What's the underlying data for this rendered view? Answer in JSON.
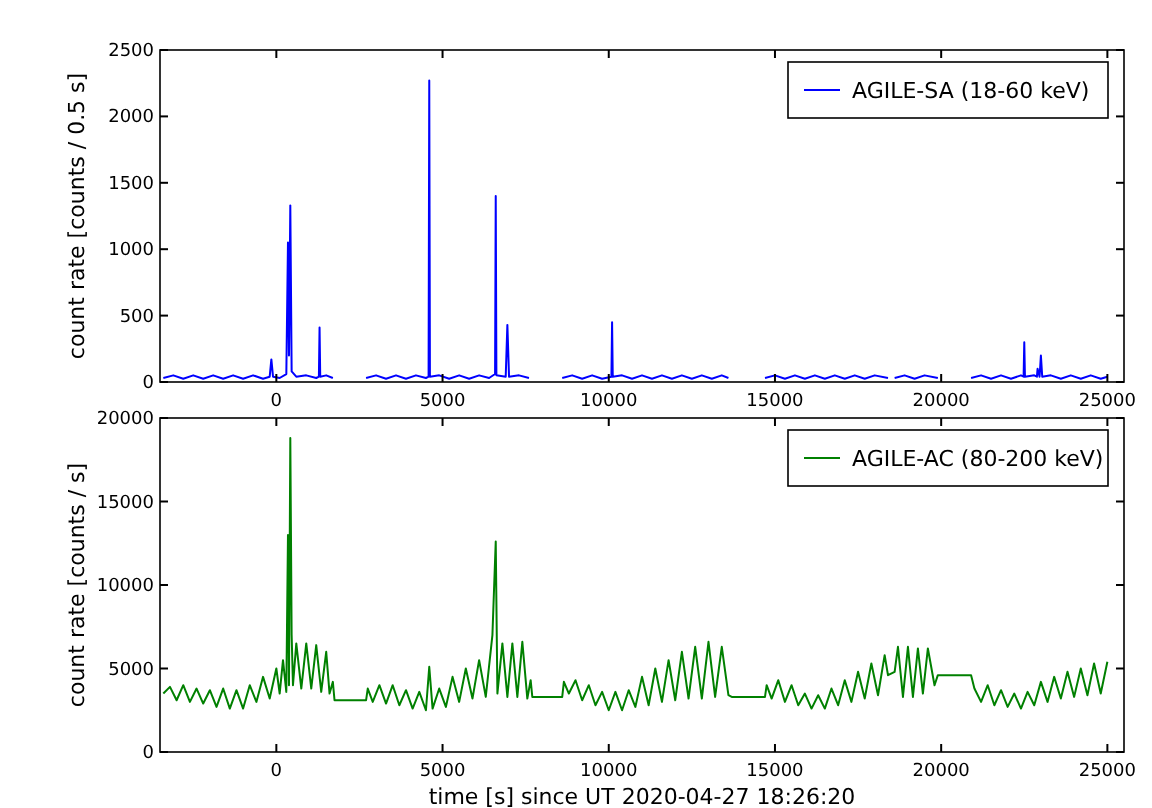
{
  "chart_data": [
    {
      "type": "line",
      "ylabel": "count rate [counts / 0.5 s]",
      "xlim": [
        -3500,
        25500
      ],
      "xticks": [
        0,
        5000,
        10000,
        15000,
        20000,
        25000
      ],
      "ylim": [
        0,
        2500
      ],
      "yticks": [
        0,
        500,
        1000,
        1500,
        2000,
        2500
      ],
      "grid": false,
      "legend": "top right",
      "series": [
        {
          "name": "AGILE-SA (18-60 keV)",
          "color": "#0000ff",
          "x": [
            -3400,
            -3100,
            -2800,
            -2500,
            -2200,
            -1900,
            -1600,
            -1300,
            -1000,
            -700,
            -400,
            -200,
            -150,
            -100,
            100,
            300,
            350,
            380,
            420,
            460,
            600,
            900,
            1200,
            1280,
            1300,
            1320,
            1500,
            1700,
            2200,
            2700,
            3000,
            3300,
            3600,
            3900,
            4200,
            4500,
            4580,
            4600,
            4620,
            4900,
            5200,
            5500,
            5800,
            6100,
            6400,
            6580,
            6600,
            6620,
            6900,
            6950,
            7000,
            7300,
            7600,
            8100,
            8600,
            8900,
            9200,
            9500,
            9800,
            10080,
            10100,
            10120,
            10400,
            10700,
            11000,
            11300,
            11600,
            11900,
            12200,
            12500,
            12800,
            13100,
            13400,
            13600,
            14100,
            14700,
            15000,
            15300,
            15600,
            15900,
            16200,
            16500,
            16800,
            17100,
            17400,
            17700,
            18000,
            18400,
            18500,
            18600,
            18900,
            19200,
            19500,
            19900,
            20400,
            20900,
            21200,
            21500,
            21800,
            22100,
            22400,
            22480,
            22500,
            22520,
            22800,
            22880,
            22900,
            22960,
            23000,
            23040,
            23300,
            23600,
            23900,
            24200,
            24500,
            24800,
            25000
          ],
          "values": [
            30,
            50,
            25,
            50,
            25,
            50,
            25,
            50,
            25,
            50,
            25,
            40,
            170,
            40,
            30,
            60,
            1050,
            200,
            1330,
            80,
            40,
            50,
            30,
            40,
            410,
            40,
            50,
            30,
            null,
            30,
            50,
            25,
            50,
            25,
            50,
            30,
            40,
            2270,
            40,
            50,
            25,
            50,
            25,
            50,
            30,
            60,
            1400,
            50,
            40,
            430,
            40,
            50,
            30,
            null,
            30,
            50,
            25,
            50,
            25,
            40,
            450,
            40,
            50,
            25,
            50,
            25,
            50,
            25,
            50,
            25,
            50,
            25,
            50,
            30,
            null,
            30,
            50,
            25,
            50,
            25,
            50,
            25,
            50,
            25,
            50,
            25,
            50,
            30,
            null,
            30,
            50,
            25,
            50,
            30,
            null,
            30,
            50,
            25,
            50,
            25,
            50,
            40,
            300,
            40,
            50,
            40,
            100,
            40,
            200,
            40,
            50,
            25,
            50,
            25,
            50,
            25,
            40
          ]
        }
      ]
    },
    {
      "type": "line",
      "xlabel": "time [s] since UT 2020-04-27 18:26:20",
      "ylabel": "count rate [counts / s]",
      "xlim": [
        -3500,
        25500
      ],
      "xticks": [
        0,
        5000,
        10000,
        15000,
        20000,
        25000
      ],
      "ylim": [
        0,
        20000
      ],
      "yticks": [
        0,
        5000,
        10000,
        15000,
        20000
      ],
      "grid": false,
      "legend": "top right",
      "series": [
        {
          "name": "AGILE-AC (80-200 keV)",
          "color": "#008000",
          "x": [
            -3400,
            -3200,
            -3000,
            -2800,
            -2600,
            -2400,
            -2200,
            -2000,
            -1800,
            -1600,
            -1400,
            -1200,
            -1000,
            -800,
            -600,
            -400,
            -200,
            0,
            100,
            200,
            300,
            350,
            380,
            420,
            460,
            500,
            600,
            750,
            900,
            1050,
            1200,
            1350,
            1500,
            1600,
            1700,
            1750,
            2700,
            2750,
            2900,
            3100,
            3300,
            3500,
            3700,
            3900,
            4100,
            4300,
            4500,
            4600,
            4700,
            4900,
            5100,
            5300,
            5500,
            5700,
            5900,
            6100,
            6300,
            6500,
            6600,
            6650,
            6800,
            6950,
            7100,
            7250,
            7400,
            7550,
            7650,
            7700,
            8600,
            8650,
            8800,
            9000,
            9200,
            9400,
            9600,
            9800,
            10000,
            10200,
            10400,
            10600,
            10800,
            11000,
            11200,
            11400,
            11600,
            11800,
            12000,
            12200,
            12400,
            12600,
            12800,
            13000,
            13200,
            13400,
            13600,
            13700,
            14700,
            14750,
            14900,
            15100,
            15300,
            15500,
            15700,
            15900,
            16100,
            16300,
            16500,
            16700,
            16900,
            17100,
            17300,
            17500,
            17700,
            17900,
            18100,
            18300,
            18400,
            18600,
            18700,
            18850,
            19000,
            19150,
            19300,
            19450,
            19600,
            19800,
            19900,
            20900,
            21000,
            21200,
            21400,
            21600,
            21800,
            22000,
            22200,
            22400,
            22600,
            22800,
            23000,
            23200,
            23400,
            23600,
            23800,
            24000,
            24200,
            24400,
            24600,
            24800,
            25000
          ],
          "values": [
            3500,
            3900,
            3100,
            4000,
            3000,
            3800,
            2900,
            3700,
            2700,
            3800,
            2600,
            3700,
            2600,
            4000,
            3000,
            4500,
            3200,
            5000,
            3500,
            5500,
            3600,
            13000,
            4000,
            18800,
            7000,
            4000,
            6500,
            3800,
            6500,
            3800,
            6400,
            3600,
            6000,
            3500,
            4200,
            3100,
            3100,
            3800,
            3000,
            4000,
            2900,
            4000,
            2800,
            3700,
            2600,
            3600,
            2500,
            5100,
            2600,
            3800,
            2700,
            4500,
            3000,
            5000,
            3200,
            5500,
            3300,
            7000,
            12600,
            3500,
            6500,
            3300,
            6500,
            3300,
            6600,
            3200,
            4300,
            3300,
            3300,
            4200,
            3500,
            4300,
            3100,
            4000,
            2800,
            3600,
            2500,
            3600,
            2500,
            3700,
            2700,
            4500,
            2800,
            5000,
            3000,
            5500,
            3100,
            6000,
            3200,
            6300,
            3200,
            6600,
            3300,
            6300,
            3400,
            3300,
            3300,
            4000,
            3200,
            4300,
            3000,
            4000,
            2800,
            3500,
            2600,
            3400,
            2600,
            3800,
            2800,
            4300,
            3000,
            4800,
            3200,
            5300,
            3400,
            5800,
            4600,
            4800,
            6300,
            3300,
            6300,
            3300,
            6200,
            3500,
            6200,
            4000,
            4600,
            4600,
            3800,
            3000,
            4000,
            2800,
            3700,
            2700,
            3500,
            2600,
            3600,
            2800,
            4200,
            3000,
            4500,
            3200,
            4800,
            3300,
            5000,
            3400,
            5300,
            3500,
            5400
          ]
        }
      ]
    }
  ]
}
